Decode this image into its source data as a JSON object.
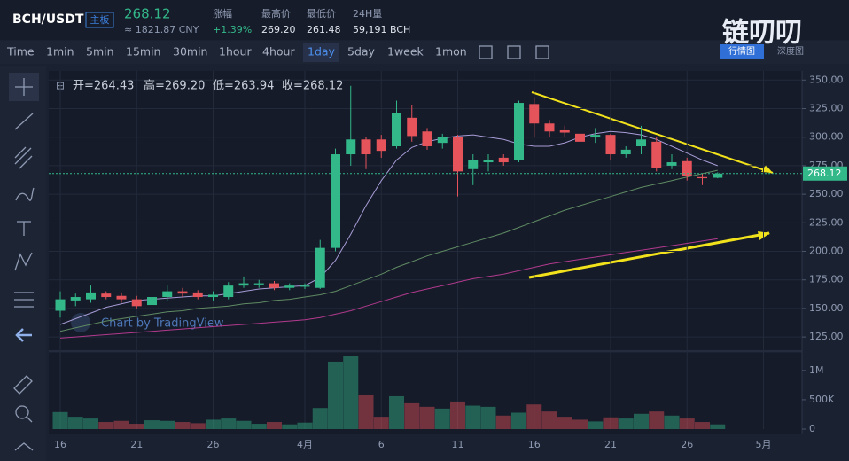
{
  "header": {
    "pair": "BCH/USDT",
    "board": "主板",
    "price": "268.12",
    "cny": "≈ 1821.87 CNY",
    "stats": [
      {
        "label": "涨幅",
        "value": "+1.39%"
      },
      {
        "label": "最高价",
        "value": "269.20"
      },
      {
        "label": "最低价",
        "value": "261.48"
      },
      {
        "label": "24H量",
        "value": "59,191 BCH"
      }
    ],
    "logo": "链叨叨",
    "tabs": [
      "行情图",
      "深度图"
    ]
  },
  "toolbar": {
    "intervals": [
      "Time",
      "1min",
      "5min",
      "15min",
      "30min",
      "1hour",
      "4hour",
      "1day",
      "5day",
      "1week",
      "1mon"
    ],
    "active": "1day"
  },
  "watermark": "Chart by TradingView",
  "chart_data": {
    "type": "candlestick",
    "ohlc_legend": [
      "开=264.43",
      "高=269.20",
      "低=263.94",
      "收=268.12"
    ],
    "categories": [
      "16",
      null,
      null,
      null,
      null,
      "21",
      null,
      null,
      null,
      null,
      "26",
      null,
      null,
      null,
      null,
      null,
      "4月",
      null,
      null,
      null,
      null,
      "6",
      null,
      null,
      null,
      null,
      "11",
      null,
      null,
      null,
      null,
      "16",
      null,
      null,
      null,
      null,
      "21",
      null,
      null,
      null,
      null,
      "26",
      null,
      null,
      null,
      null,
      "5月"
    ],
    "open": [
      148,
      157,
      158,
      163,
      161,
      158,
      153,
      160,
      165,
      164,
      160,
      160,
      170,
      171,
      172,
      168,
      169,
      168,
      203,
      285,
      298,
      298,
      292,
      317,
      305,
      295,
      300,
      272,
      278,
      282,
      280,
      329,
      312,
      306,
      303,
      300,
      302,
      285,
      292,
      296,
      275,
      279,
      265,
      264.43,
      null,
      null,
      null
    ],
    "high": [
      165,
      163,
      170,
      165,
      164,
      161,
      163,
      170,
      168,
      166,
      165,
      173,
      178,
      175,
      174,
      172,
      172,
      210,
      290,
      345,
      300,
      302,
      332,
      328,
      308,
      303,
      302,
      285,
      285,
      285,
      332,
      335,
      315,
      310,
      310,
      308,
      303,
      292,
      310,
      300,
      285,
      282,
      268,
      269.2,
      null,
      null,
      null
    ],
    "low": [
      142,
      152,
      155,
      158,
      155,
      150,
      150,
      157,
      160,
      158,
      157,
      158,
      168,
      168,
      166,
      166,
      167,
      167,
      200,
      275,
      272,
      282,
      290,
      296,
      289,
      290,
      248,
      258,
      270,
      275,
      278,
      300,
      300,
      300,
      290,
      295,
      280,
      282,
      285,
      270,
      272,
      262,
      258,
      263.94,
      null,
      null,
      null
    ],
    "close": [
      158,
      160,
      164,
      160,
      158,
      152,
      160,
      165,
      163,
      160,
      162,
      170,
      172,
      172,
      168,
      170,
      170,
      203,
      285,
      298,
      285,
      288,
      321,
      301,
      292,
      300,
      270,
      280,
      280,
      278,
      330,
      312,
      305,
      304,
      296,
      302,
      285,
      289,
      298,
      273,
      278,
      266,
      264,
      268.12,
      null,
      null,
      null
    ],
    "up_color": "#33b88a",
    "down_color": "#e5535b",
    "ylim": [
      115,
      358
    ],
    "yticks": [
      {
        "value": 125,
        "label": "125.00"
      },
      {
        "value": 150,
        "label": "150.00"
      },
      {
        "value": 175,
        "label": "175.00"
      },
      {
        "value": 200,
        "label": "200.00"
      },
      {
        "value": 225,
        "label": "225.00"
      },
      {
        "value": 250,
        "label": "250.00"
      },
      {
        "value": 275,
        "label": "275.00"
      },
      {
        "value": 300,
        "label": "300.00"
      },
      {
        "value": 325,
        "label": "325.00"
      },
      {
        "value": 350,
        "label": "350.00"
      }
    ],
    "price_line": 268.12,
    "series": [
      {
        "name": null,
        "color": "#a79bd6",
        "values": [
          136,
          141,
          146,
          151,
          154,
          157,
          158,
          159,
          160,
          161,
          161,
          163,
          165,
          167,
          168,
          169,
          170,
          177,
          192,
          215,
          240,
          262,
          280,
          291,
          296,
          299,
          301,
          302,
          300,
          298,
          294,
          292,
          292,
          295,
          300,
          303,
          305,
          304,
          302,
          298,
          292,
          286,
          280,
          275,
          null,
          null,
          null
        ]
      },
      {
        "name": null,
        "color": "#5f8a63",
        "values": [
          130,
          133,
          136,
          139,
          141,
          143,
          145,
          147,
          148,
          150,
          151,
          152,
          154,
          155,
          157,
          158,
          160,
          162,
          165,
          170,
          175,
          180,
          186,
          191,
          196,
          200,
          204,
          208,
          212,
          216,
          221,
          226,
          231,
          236,
          240,
          244,
          248,
          252,
          256,
          259,
          262,
          265,
          268,
          271,
          null,
          null,
          null
        ]
      },
      {
        "name": null,
        "color": "#b23a8e",
        "values": [
          124,
          125,
          126,
          127,
          128,
          129,
          130,
          131,
          132,
          133,
          134,
          135,
          136,
          137,
          138,
          139,
          140,
          142,
          145,
          148,
          152,
          156,
          160,
          164,
          167,
          170,
          173,
          176,
          178,
          180,
          183,
          186,
          189,
          191,
          193,
          195,
          197,
          199,
          201,
          203,
          205,
          207,
          209,
          211,
          null,
          null,
          null
        ]
      }
    ],
    "volume": [
      290000,
      210000,
      180000,
      120000,
      140000,
      90000,
      150000,
      140000,
      120000,
      100000,
      160000,
      180000,
      140000,
      90000,
      120000,
      80000,
      110000,
      360000,
      1150000,
      1250000,
      590000,
      210000,
      560000,
      440000,
      380000,
      350000,
      470000,
      400000,
      380000,
      230000,
      280000,
      420000,
      300000,
      210000,
      160000,
      130000,
      200000,
      180000,
      260000,
      300000,
      230000,
      180000,
      120000,
      80000,
      null,
      null,
      null
    ],
    "vlim": [
      0,
      1270000
    ],
    "vticks": [
      {
        "value": 0,
        "label": "0"
      },
      {
        "value": 500000,
        "label": "500K"
      },
      {
        "value": 1000000,
        "label": "1M"
      }
    ]
  }
}
